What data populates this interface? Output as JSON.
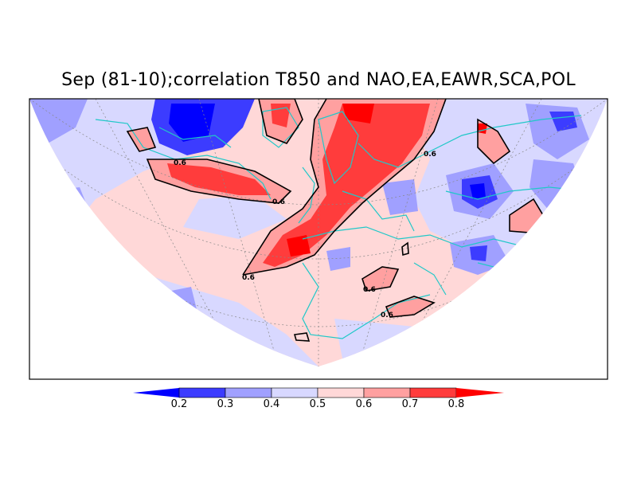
{
  "title": "Sep (81-10);correlation T850 and NAO,EA,EAWR,SCA,POL",
  "contour_labels": [
    "0.6",
    "0.6",
    "0.6",
    "0.6",
    "0.6",
    "0.6"
  ],
  "colorbar": {
    "ticks": [
      "0.2",
      "0.3",
      "0.4",
      "0.5",
      "0.6",
      "0.7",
      "0.8"
    ],
    "colors": [
      "#0000ff",
      "#3c3cff",
      "#a0a0ff",
      "#d8d8ff",
      "#ffd8d8",
      "#ffa0a0",
      "#ff3c3c",
      "#ff0000"
    ]
  },
  "map_colors": {
    "coast": "#20c8c8",
    "contour": "#000000",
    "grid": "#888888"
  }
}
